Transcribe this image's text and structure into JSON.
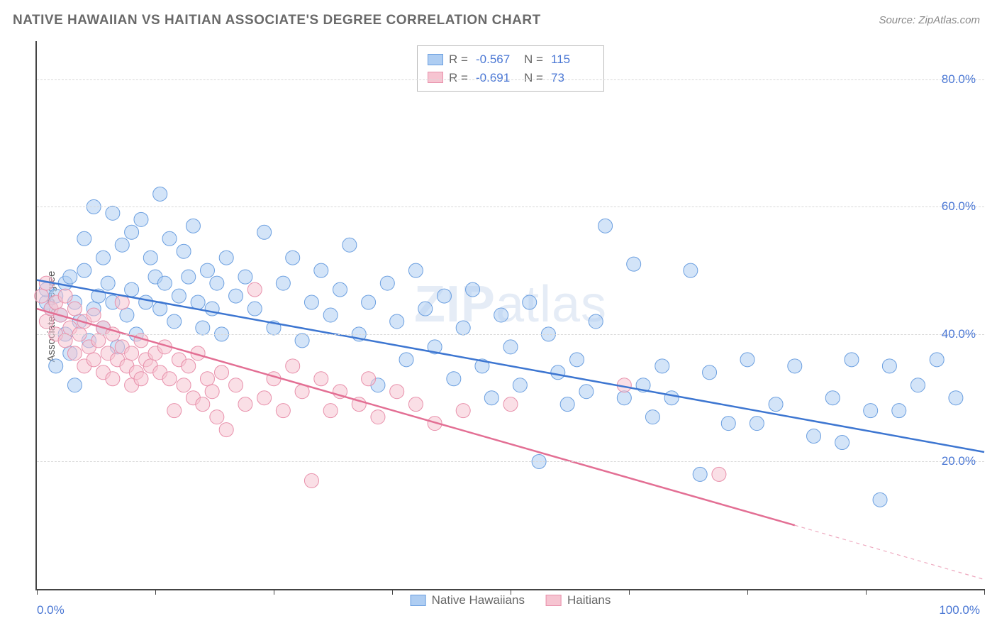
{
  "title": "NATIVE HAWAIIAN VS HAITIAN ASSOCIATE'S DEGREE CORRELATION CHART",
  "source": "Source: ZipAtlas.com",
  "watermark": "ZIPatlas",
  "chart": {
    "type": "scatter",
    "xlim": [
      0,
      100
    ],
    "ylim": [
      0,
      86
    ],
    "y_gridlines": [
      20,
      40,
      60,
      80
    ],
    "y_tick_labels": [
      "20.0%",
      "40.0%",
      "60.0%",
      "80.0%"
    ],
    "x_ticks": [
      0,
      12.5,
      25,
      37.5,
      50,
      62.5,
      75,
      87.5,
      100
    ],
    "x_tick_labels": {
      "0": "0.0%",
      "100": "100.0%"
    },
    "y_axis_label": "Associate's Degree",
    "grid_color": "#d8d8d8",
    "axis_color": "#444444",
    "tick_label_color": "#4a77d4",
    "background_color": "#ffffff",
    "point_radius": 10,
    "point_opacity": 0.55,
    "line_width": 2.5,
    "series": [
      {
        "name": "Native Hawaiians",
        "color_fill": "#aecdf2",
        "color_stroke": "#6b9fe0",
        "line_color": "#3d76d1",
        "R": "-0.567",
        "N": "115",
        "trend": {
          "x1": 0,
          "y1": 48.5,
          "x2": 100,
          "y2": 21.5
        },
        "points": [
          [
            1,
            45
          ],
          [
            1,
            47
          ],
          [
            1.5,
            44
          ],
          [
            2,
            46
          ],
          [
            2,
            35
          ],
          [
            2.5,
            43
          ],
          [
            3,
            48
          ],
          [
            3,
            40
          ],
          [
            3.5,
            37
          ],
          [
            3.5,
            49
          ],
          [
            4,
            45
          ],
          [
            4,
            32
          ],
          [
            4.5,
            42
          ],
          [
            5,
            50
          ],
          [
            5,
            55
          ],
          [
            5.5,
            39
          ],
          [
            6,
            44
          ],
          [
            6,
            60
          ],
          [
            6.5,
            46
          ],
          [
            7,
            52
          ],
          [
            7,
            41
          ],
          [
            7.5,
            48
          ],
          [
            8,
            45
          ],
          [
            8,
            59
          ],
          [
            8.5,
            38
          ],
          [
            9,
            54
          ],
          [
            9.5,
            43
          ],
          [
            10,
            56
          ],
          [
            10,
            47
          ],
          [
            10.5,
            40
          ],
          [
            11,
            58
          ],
          [
            11.5,
            45
          ],
          [
            12,
            52
          ],
          [
            12.5,
            49
          ],
          [
            13,
            62
          ],
          [
            13,
            44
          ],
          [
            13.5,
            48
          ],
          [
            14,
            55
          ],
          [
            14.5,
            42
          ],
          [
            15,
            46
          ],
          [
            15.5,
            53
          ],
          [
            16,
            49
          ],
          [
            16.5,
            57
          ],
          [
            17,
            45
          ],
          [
            17.5,
            41
          ],
          [
            18,
            50
          ],
          [
            18.5,
            44
          ],
          [
            19,
            48
          ],
          [
            19.5,
            40
          ],
          [
            20,
            52
          ],
          [
            21,
            46
          ],
          [
            22,
            49
          ],
          [
            23,
            44
          ],
          [
            24,
            56
          ],
          [
            25,
            41
          ],
          [
            26,
            48
          ],
          [
            27,
            52
          ],
          [
            28,
            39
          ],
          [
            29,
            45
          ],
          [
            30,
            50
          ],
          [
            31,
            43
          ],
          [
            32,
            47
          ],
          [
            33,
            54
          ],
          [
            34,
            40
          ],
          [
            35,
            45
          ],
          [
            36,
            32
          ],
          [
            37,
            48
          ],
          [
            38,
            42
          ],
          [
            39,
            36
          ],
          [
            40,
            50
          ],
          [
            41,
            44
          ],
          [
            42,
            38
          ],
          [
            43,
            46
          ],
          [
            44,
            33
          ],
          [
            45,
            41
          ],
          [
            46,
            47
          ],
          [
            47,
            35
          ],
          [
            48,
            30
          ],
          [
            49,
            43
          ],
          [
            50,
            38
          ],
          [
            51,
            32
          ],
          [
            52,
            45
          ],
          [
            53,
            20
          ],
          [
            54,
            40
          ],
          [
            55,
            34
          ],
          [
            56,
            29
          ],
          [
            57,
            36
          ],
          [
            58,
            31
          ],
          [
            59,
            42
          ],
          [
            60,
            57
          ],
          [
            62,
            30
          ],
          [
            63,
            51
          ],
          [
            64,
            32
          ],
          [
            65,
            27
          ],
          [
            66,
            35
          ],
          [
            67,
            30
          ],
          [
            69,
            50
          ],
          [
            71,
            34
          ],
          [
            73,
            26
          ],
          [
            75,
            36
          ],
          [
            76,
            26
          ],
          [
            78,
            29
          ],
          [
            80,
            35
          ],
          [
            82,
            24
          ],
          [
            84,
            30
          ],
          [
            85,
            23
          ],
          [
            86,
            36
          ],
          [
            88,
            28
          ],
          [
            89,
            14
          ],
          [
            90,
            35
          ],
          [
            91,
            28
          ],
          [
            93,
            32
          ],
          [
            95,
            36
          ],
          [
            97,
            30
          ],
          [
            70,
            18
          ]
        ]
      },
      {
        "name": "Haitians",
        "color_fill": "#f6c4d1",
        "color_stroke": "#e890ab",
        "line_color": "#e36f94",
        "R": "-0.691",
        "N": "73",
        "trend": {
          "x1": 0,
          "y1": 44,
          "x2": 80,
          "y2": 10
        },
        "trend_dash_extend": {
          "x1": 80,
          "y1": 10,
          "x2": 100,
          "y2": 1.5
        },
        "points": [
          [
            0.5,
            46
          ],
          [
            1,
            48
          ],
          [
            1,
            42
          ],
          [
            1.5,
            44
          ],
          [
            2,
            45
          ],
          [
            2,
            40
          ],
          [
            2.5,
            43
          ],
          [
            3,
            46
          ],
          [
            3,
            39
          ],
          [
            3.5,
            41
          ],
          [
            4,
            44
          ],
          [
            4,
            37
          ],
          [
            4.5,
            40
          ],
          [
            5,
            42
          ],
          [
            5,
            35
          ],
          [
            5.5,
            38
          ],
          [
            6,
            43
          ],
          [
            6,
            36
          ],
          [
            6.5,
            39
          ],
          [
            7,
            41
          ],
          [
            7,
            34
          ],
          [
            7.5,
            37
          ],
          [
            8,
            40
          ],
          [
            8,
            33
          ],
          [
            8.5,
            36
          ],
          [
            9,
            38
          ],
          [
            9,
            45
          ],
          [
            9.5,
            35
          ],
          [
            10,
            37
          ],
          [
            10,
            32
          ],
          [
            10.5,
            34
          ],
          [
            11,
            39
          ],
          [
            11,
            33
          ],
          [
            11.5,
            36
          ],
          [
            12,
            35
          ],
          [
            12.5,
            37
          ],
          [
            13,
            34
          ],
          [
            13.5,
            38
          ],
          [
            14,
            33
          ],
          [
            14.5,
            28
          ],
          [
            15,
            36
          ],
          [
            15.5,
            32
          ],
          [
            16,
            35
          ],
          [
            16.5,
            30
          ],
          [
            17,
            37
          ],
          [
            17.5,
            29
          ],
          [
            18,
            33
          ],
          [
            18.5,
            31
          ],
          [
            19,
            27
          ],
          [
            19.5,
            34
          ],
          [
            20,
            25
          ],
          [
            21,
            32
          ],
          [
            22,
            29
          ],
          [
            23,
            47
          ],
          [
            24,
            30
          ],
          [
            25,
            33
          ],
          [
            26,
            28
          ],
          [
            27,
            35
          ],
          [
            28,
            31
          ],
          [
            29,
            17
          ],
          [
            30,
            33
          ],
          [
            31,
            28
          ],
          [
            32,
            31
          ],
          [
            34,
            29
          ],
          [
            35,
            33
          ],
          [
            36,
            27
          ],
          [
            38,
            31
          ],
          [
            40,
            29
          ],
          [
            42,
            26
          ],
          [
            45,
            28
          ],
          [
            50,
            29
          ],
          [
            62,
            32
          ],
          [
            72,
            18
          ]
        ]
      }
    ]
  },
  "legend_top": {
    "r_label": "R =",
    "n_label": "N ="
  },
  "legend_bottom": {
    "items": [
      "Native Hawaiians",
      "Haitians"
    ]
  }
}
